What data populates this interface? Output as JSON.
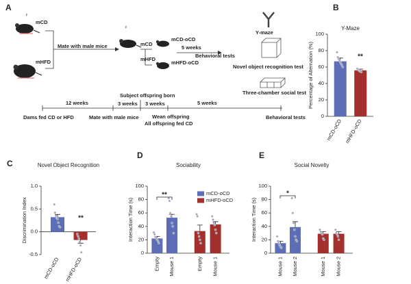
{
  "diagram": {
    "panel": "A",
    "female": "♀",
    "dam_cd": "mCD",
    "dam_hfd": "mHFD",
    "mate": "Mate with male mice",
    "mother_cd": "mCD",
    "mother_hfd": "mHFD",
    "offspring": [
      "mCD-oCD",
      "mHFD-oCD"
    ],
    "duration": "5 weeks",
    "behavioral": "Behavioral tests",
    "tests": [
      "Y-maze",
      "Novel object recognition test",
      "Three-chamber social test"
    ],
    "timeline": {
      "born": "Subject offspring born",
      "intervals": [
        "12 weeks",
        "3 weeks",
        "3 weeks",
        "5 weeks"
      ],
      "events": [
        "Dams fed CD or HFD",
        "Mate with male mice",
        "Wean offspring",
        "All offspring fed CD",
        "Behavioral tests"
      ]
    }
  },
  "chart_data": [
    {
      "type": "bar",
      "panel": "B",
      "title": "Y-Maze",
      "ylabel": "Percentage of Alternation (%)",
      "categories": [
        "mCD-oCD",
        "mHFD-oCD"
      ],
      "values": [
        67,
        56
      ],
      "errors": [
        4,
        1.5
      ],
      "colors": [
        "#5d6eb6",
        "#a3302d"
      ],
      "points": [
        [
          78,
          72,
          70,
          68,
          66,
          64,
          62,
          60
        ],
        [
          58,
          57,
          56,
          55,
          55,
          54
        ]
      ],
      "ylim": [
        0,
        100
      ],
      "yticks": [
        0,
        20,
        40,
        60,
        80,
        100
      ],
      "annotations": [
        "**"
      ]
    },
    {
      "type": "bar",
      "panel": "C",
      "title": "Novel Object Recognition",
      "ylabel": "Discrimination Index",
      "categories": [
        "mCD-oCD",
        "mHFD-oCD"
      ],
      "values": [
        0.32,
        -0.18
      ],
      "errors": [
        0.06,
        0.07
      ],
      "colors": [
        "#5d6eb6",
        "#a3302d"
      ],
      "points": [
        [
          0.6,
          0.42,
          0.35,
          0.3,
          0.28,
          0.2,
          0.12,
          0.1
        ],
        [
          -0.05,
          -0.1,
          -0.15,
          -0.22,
          -0.3,
          -0.45
        ]
      ],
      "ylim": [
        -0.5,
        1.0
      ],
      "yticks": [
        -0.5,
        {
          "value": 0,
          "label": "0.0"
        },
        0.5,
        {
          "value": 1,
          "label": "1.0"
        }
      ],
      "annotations": [
        "**"
      ]
    },
    {
      "type": "bar",
      "panel": "D",
      "title": "Sociability",
      "ylabel": "Interaction Time (s)",
      "categories": [
        "Empty",
        "Mouse 1",
        "Empty",
        "Mouse 1"
      ],
      "series": [
        {
          "name": "mCD-oCD",
          "color": "#5d6eb6",
          "values": [
            22,
            53,
            null,
            null
          ],
          "errors": [
            3,
            5,
            null,
            null
          ],
          "points": [
            [
              31,
              28,
              24,
              22,
              20,
              18,
              15
            ],
            [
              82,
              78,
              60,
              55,
              45,
              40,
              30
            ],
            null,
            null
          ]
        },
        {
          "name": "mHFD-oCD",
          "color": "#a3302d",
          "values": [
            null,
            null,
            33,
            43
          ],
          "errors": [
            null,
            null,
            9,
            4
          ],
          "points": [
            null,
            null,
            [
              58,
              55,
              30,
              25,
              20,
              15
            ],
            [
              55,
              50,
              45,
              42,
              35,
              30
            ]
          ]
        }
      ],
      "ylim": [
        0,
        100
      ],
      "yticks": [
        0,
        20,
        40,
        60,
        80,
        100
      ],
      "legend": "upper right",
      "annotations": [
        "**"
      ]
    },
    {
      "type": "bar",
      "panel": "E",
      "title": "Social Novelty",
      "ylabel": "Interaction Time (s)",
      "categories": [
        "Mouse 1",
        "Mouse 2",
        "Mouse 1",
        "Mouse 2"
      ],
      "series": [
        {
          "color": "#5d6eb6",
          "values": [
            15,
            39,
            null,
            null
          ],
          "errors": [
            3,
            8,
            null,
            null
          ],
          "points": [
            [
              25,
              18,
              15,
              12,
              10,
              8
            ],
            [
              82,
              60,
              45,
              35,
              25,
              20,
              18
            ],
            null,
            null
          ]
        },
        {
          "color": "#a3302d",
          "values": [
            null,
            null,
            29,
            29
          ],
          "errors": [
            null,
            null,
            3,
            3
          ],
          "points": [
            null,
            null,
            [
              35,
              32,
              30,
              28,
              22,
              20
            ],
            [
              35,
              30,
              28,
              25,
              20
            ]
          ]
        }
      ],
      "ylim": [
        0,
        100
      ],
      "yticks": [
        0,
        20,
        40,
        60,
        80,
        100
      ],
      "annotations": [
        "*"
      ]
    }
  ]
}
